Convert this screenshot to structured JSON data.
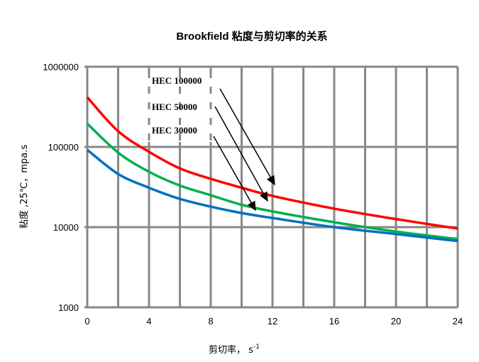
{
  "chart_data": {
    "type": "line",
    "title": "Brookfield 粘度与剪切率的关系",
    "xlabel": "剪切率， s",
    "xlabel_superscript": "-1",
    "ylabel": "粘度 ,25℃，mpa.s",
    "xlim": [
      0,
      24
    ],
    "ylim": [
      1000,
      1000000
    ],
    "yscale": "log",
    "xticks": [
      "0",
      "4",
      "8",
      "12",
      "16",
      "20",
      "24"
    ],
    "yticks": [
      "1000",
      "10000",
      "100000",
      "1000000"
    ],
    "grid": true,
    "x": [
      0,
      2,
      4,
      6,
      8,
      10,
      12,
      16,
      20,
      24
    ],
    "series": [
      {
        "name": "HEC 100000",
        "color": "#ff0000",
        "values": [
          416000,
          157000,
          87000,
          54000,
          40000,
          31000,
          24500,
          17000,
          12600,
          9600
        ]
      },
      {
        "name": "HEC 50000",
        "color": "#00b050",
        "values": [
          195000,
          85000,
          49000,
          33000,
          25000,
          19000,
          15700,
          11500,
          8800,
          7100
        ]
      },
      {
        "name": "HEC 30000",
        "color": "#0070c0",
        "values": [
          92000,
          46000,
          31000,
          22500,
          18000,
          15000,
          13000,
          10000,
          8200,
          6700
        ]
      }
    ]
  }
}
